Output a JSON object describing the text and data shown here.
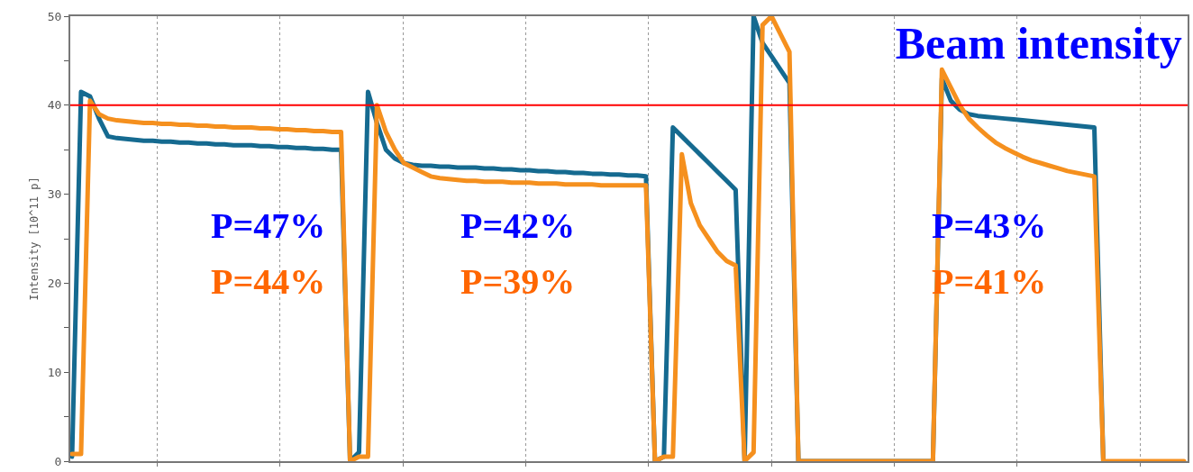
{
  "chart_data": {
    "type": "line",
    "title": "Beam intensity",
    "ylabel": "Intensity [10^11 p]",
    "categories": [
      null,
      null,
      null,
      null,
      null,
      null,
      null,
      null,
      null,
      null,
      null,
      null,
      null,
      null,
      null,
      null,
      null,
      null,
      null,
      null,
      null,
      null,
      null,
      null,
      null,
      null,
      null,
      null,
      null,
      null,
      null,
      null,
      null,
      null,
      null,
      null,
      null,
      null,
      null,
      null,
      null,
      null,
      null,
      null,
      null,
      null,
      null,
      null,
      null,
      null,
      null,
      null,
      null,
      null,
      null,
      null,
      null,
      null,
      null,
      null,
      null,
      null,
      null,
      null,
      null,
      null,
      null,
      null,
      null,
      null,
      null,
      null,
      null,
      null,
      null,
      null,
      null,
      null,
      null,
      null,
      null,
      null,
      null,
      null,
      null,
      null,
      null,
      null,
      null,
      null,
      null,
      null,
      null,
      null,
      null,
      null,
      null,
      null,
      null,
      null,
      null,
      null,
      null,
      null,
      null,
      null,
      null,
      null,
      null,
      null,
      null,
      null,
      null,
      null,
      null,
      null,
      null,
      null,
      null,
      null,
      null,
      null,
      null,
      null,
      null
    ],
    "series": [
      {
        "color": "#156a90",
        "values": [
          0.5,
          41.5,
          41,
          38.5,
          36.5,
          36.3,
          36.2,
          36.1,
          36,
          36,
          35.9,
          35.9,
          35.8,
          35.8,
          35.7,
          35.7,
          35.6,
          35.6,
          35.5,
          35.5,
          35.5,
          35.4,
          35.4,
          35.3,
          35.3,
          35.2,
          35.2,
          35.1,
          35.1,
          35,
          35,
          0,
          1,
          41.5,
          38,
          35,
          34,
          33.5,
          33.3,
          33.2,
          33.2,
          33.1,
          33.1,
          33,
          33,
          33,
          32.9,
          32.9,
          32.8,
          32.8,
          32.7,
          32.7,
          32.6,
          32.6,
          32.5,
          32.5,
          32.4,
          32.4,
          32.3,
          32.3,
          32.2,
          32.2,
          32.1,
          32.1,
          32,
          0,
          0.5,
          37.5,
          36.5,
          35.5,
          34.5,
          33.5,
          32.5,
          31.5,
          30.5,
          0,
          50,
          47,
          45.5,
          44,
          42.5,
          0,
          0,
          0,
          0,
          0,
          0,
          0,
          0,
          0,
          0,
          0,
          0,
          0,
          0,
          0,
          0,
          43,
          40.5,
          39.5,
          39,
          38.8,
          38.7,
          38.6,
          38.5,
          38.4,
          38.3,
          38.2,
          38.1,
          38,
          37.9,
          37.8,
          37.7,
          37.6,
          37.5,
          0,
          null,
          null,
          null,
          null,
          null,
          null,
          null,
          null,
          null
        ]
      },
      {
        "color": "#f5901e",
        "values": [
          0.8,
          0.8,
          40.5,
          39,
          38.5,
          38.3,
          38.2,
          38.1,
          38,
          38,
          37.9,
          37.9,
          37.8,
          37.8,
          37.7,
          37.7,
          37.6,
          37.6,
          37.5,
          37.5,
          37.5,
          37.4,
          37.4,
          37.3,
          37.3,
          37.2,
          37.2,
          37.1,
          37.1,
          37,
          37,
          0,
          0.5,
          0.5,
          40,
          37,
          35,
          33.5,
          33,
          32.5,
          32,
          31.8,
          31.7,
          31.6,
          31.5,
          31.5,
          31.4,
          31.4,
          31.4,
          31.3,
          31.3,
          31.3,
          31.2,
          31.2,
          31.2,
          31.1,
          31.1,
          31.1,
          31.1,
          31,
          31,
          31,
          31,
          31,
          31,
          0,
          0.5,
          0.5,
          34.5,
          29,
          26.5,
          25,
          23.5,
          22.5,
          22,
          0,
          1,
          49,
          50,
          48,
          46,
          0,
          0,
          0,
          0,
          0,
          0,
          0,
          0,
          0,
          0,
          0,
          0,
          0,
          0,
          0,
          0,
          44,
          42,
          40,
          38.5,
          37.5,
          36.6,
          35.8,
          35.2,
          34.7,
          34.2,
          33.8,
          33.5,
          33.2,
          32.9,
          32.6,
          32.4,
          32.2,
          32,
          0,
          0,
          0,
          0,
          0,
          0,
          0,
          0,
          0,
          0
        ]
      }
    ],
    "ylim": [
      0,
      50
    ],
    "yticks": [
      0,
      {
        "value": 5,
        "label": null
      },
      10,
      {
        "value": 15,
        "label": null
      },
      20,
      {
        "value": 25,
        "label": null
      },
      30,
      {
        "value": 35,
        "label": null
      },
      40,
      {
        "value": 45,
        "label": null
      },
      50
    ],
    "ref_lines": [
      {
        "axis": "y",
        "value": 40,
        "color": "#ff0000"
      }
    ],
    "annotations": [
      "P=47%",
      "P=44%",
      "P=42%",
      "P=39%",
      "P=43%",
      "P=41%"
    ],
    "grid": "x",
    "tick_labels": "y",
    "marker": "none",
    "line_style": "solid"
  }
}
